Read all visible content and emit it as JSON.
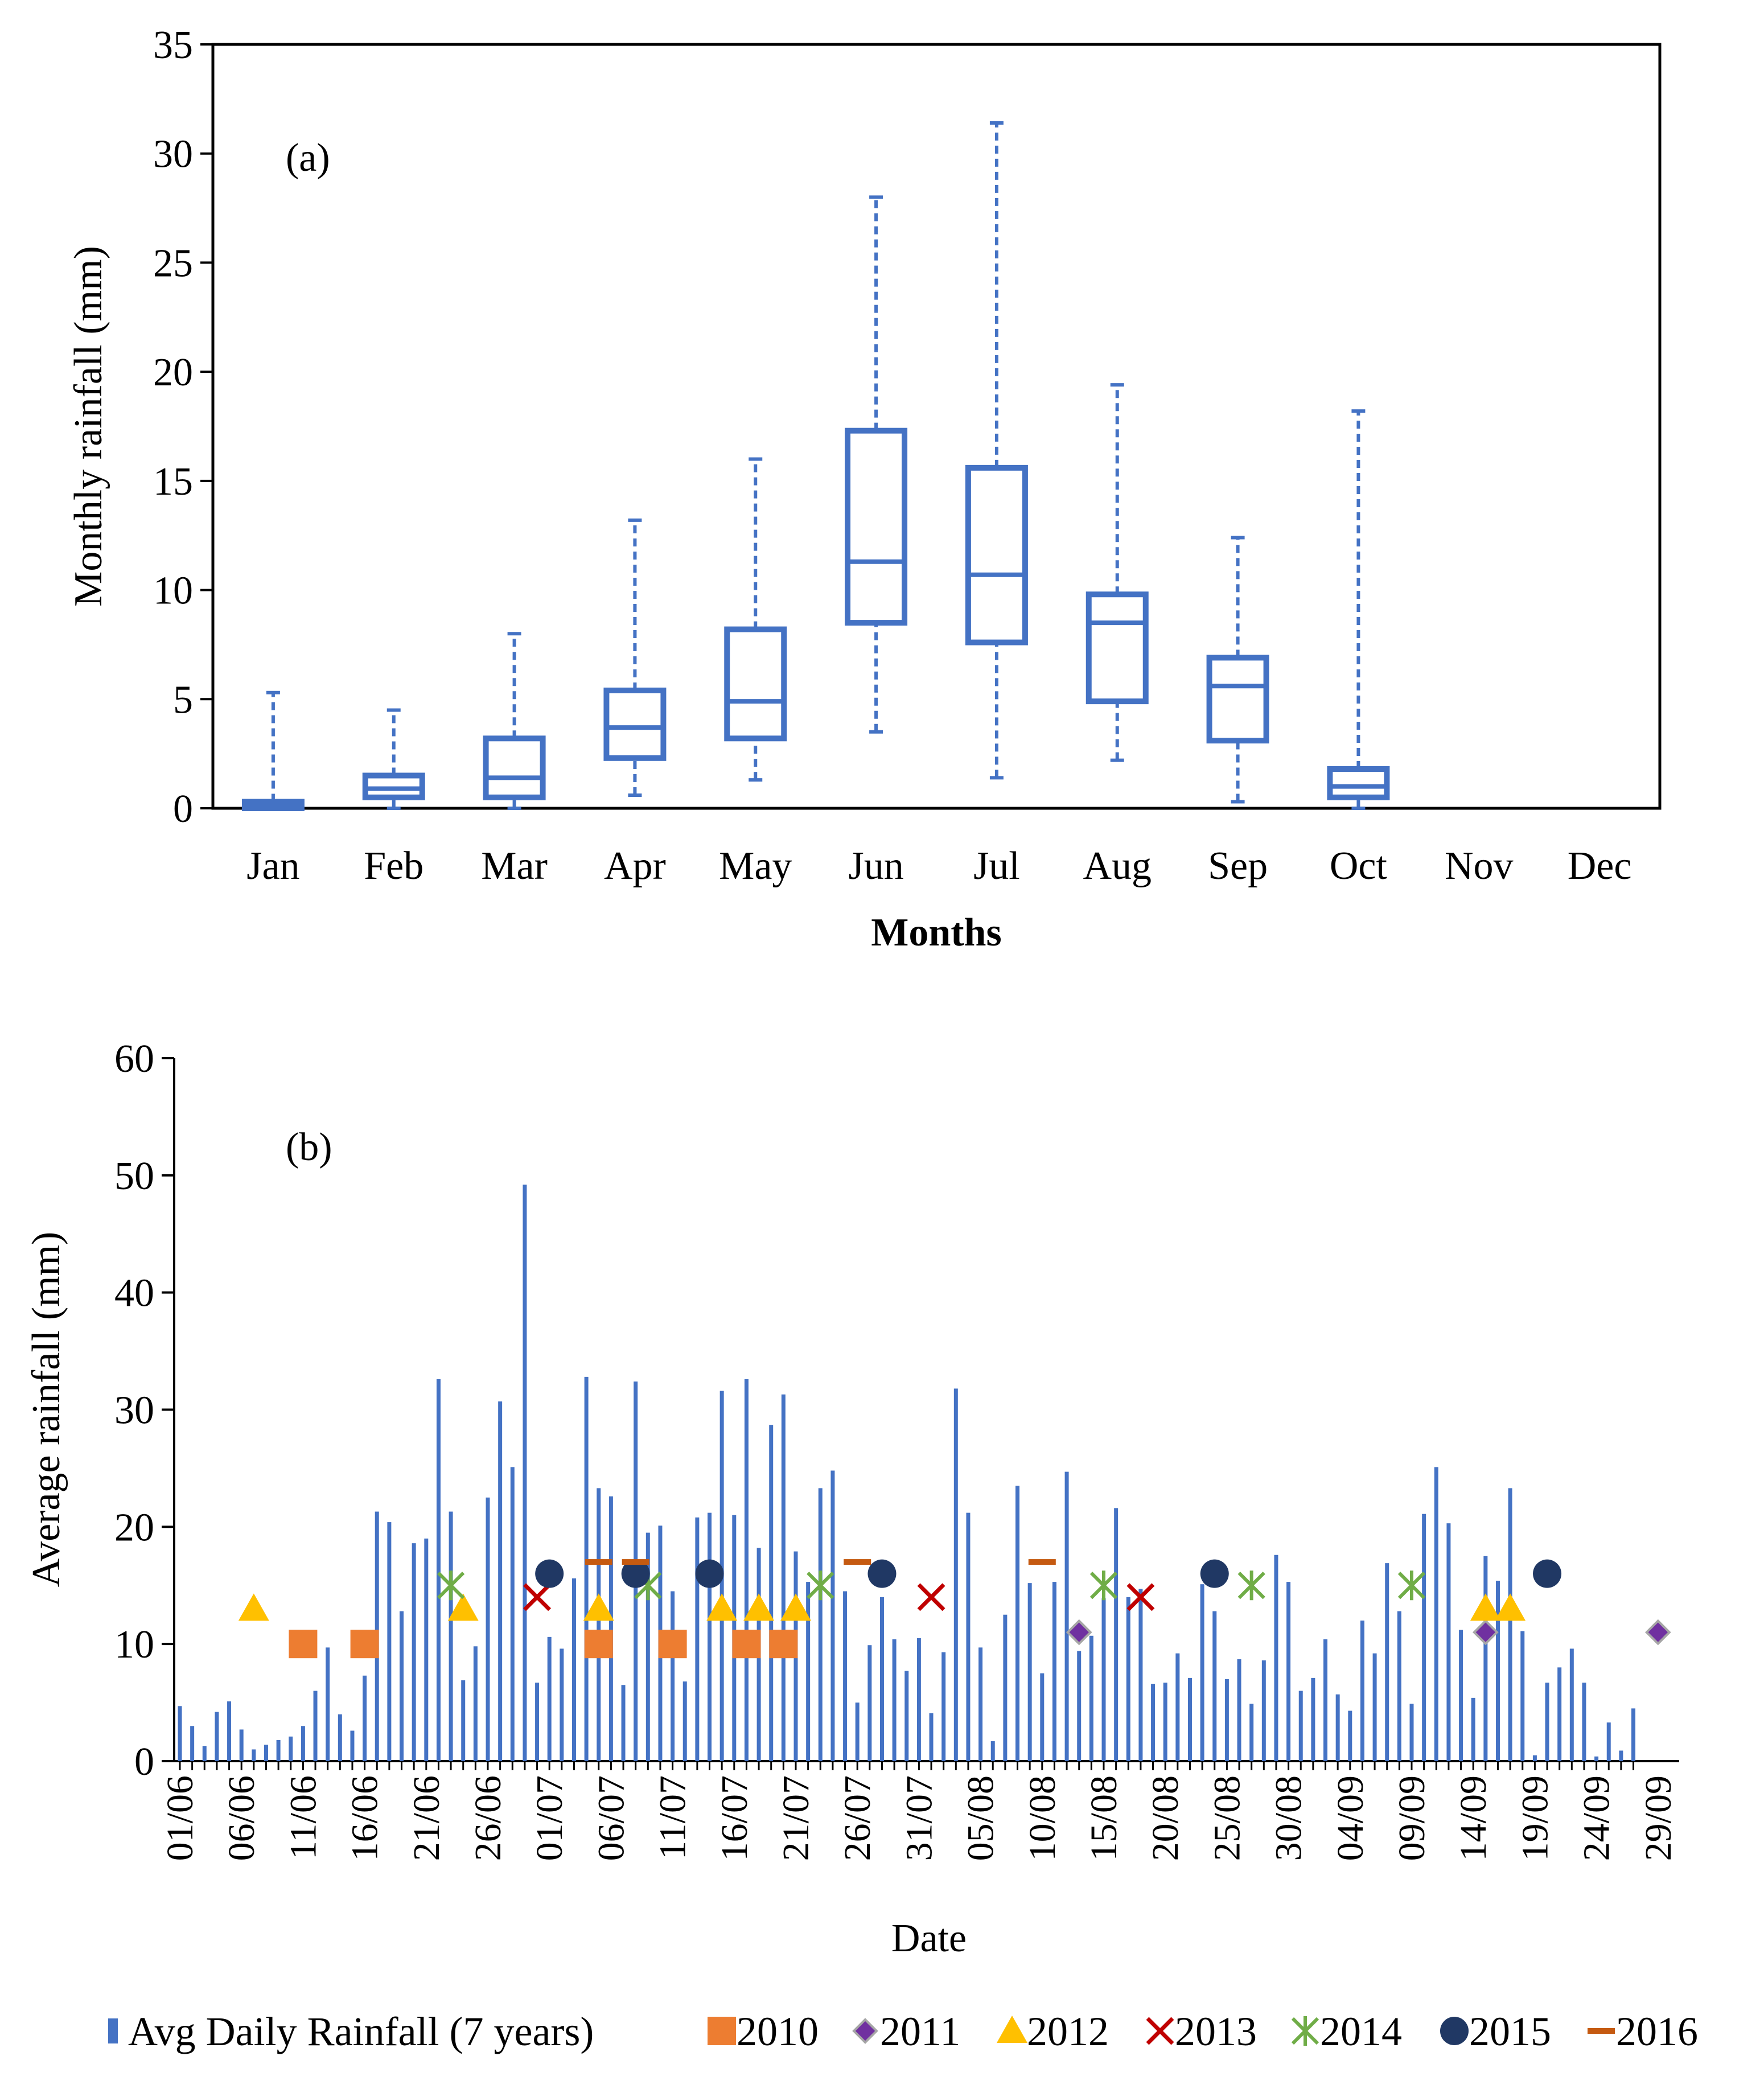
{
  "chart_data": [
    {
      "type": "boxplot",
      "panel_label": "(a)",
      "title": "",
      "xlabel": "Months",
      "ylabel": "Monthly rainfall (mm)",
      "ylim": [
        0,
        35
      ],
      "yticks": [
        "0",
        "5",
        "10",
        "15",
        "20",
        "25",
        "30",
        "35"
      ],
      "categories": [
        "Jan",
        "Feb",
        "Mar",
        "Apr",
        "May",
        "Jun",
        "Jul",
        "Aug",
        "Sep",
        "Oct",
        "Nov",
        "Dec"
      ],
      "boxes": [
        {
          "min": 0,
          "q1": 0.0,
          "median": 0.1,
          "q3": 0.3,
          "max": 5.3
        },
        {
          "min": 0,
          "q1": 0.5,
          "median": 0.9,
          "q3": 1.5,
          "max": 4.5
        },
        {
          "min": 0,
          "q1": 0.5,
          "median": 1.4,
          "q3": 3.2,
          "max": 8.0
        },
        {
          "min": 0.6,
          "q1": 2.3,
          "median": 3.7,
          "q3": 5.4,
          "max": 13.2
        },
        {
          "min": 1.3,
          "q1": 3.2,
          "median": 4.9,
          "q3": 8.2,
          "max": 16.0
        },
        {
          "min": 3.5,
          "q1": 8.5,
          "median": 11.3,
          "q3": 17.3,
          "max": 28.0
        },
        {
          "min": 1.4,
          "q1": 7.6,
          "median": 10.7,
          "q3": 15.6,
          "max": 31.4
        },
        {
          "min": 2.2,
          "q1": 4.9,
          "median": 8.5,
          "q3": 9.8,
          "max": 19.4
        },
        {
          "min": 0.3,
          "q1": 3.1,
          "median": 5.6,
          "q3": 6.9,
          "max": 12.4
        },
        {
          "min": 0,
          "q1": 0.5,
          "median": 1.0,
          "q3": 1.8,
          "max": 18.2
        },
        null,
        null
      ],
      "color": "#4472C4"
    },
    {
      "type": "bar+scatter",
      "panel_label": "(b)",
      "title": "",
      "xlabel": "Date",
      "ylabel": "Average rainfall (mm)",
      "ylim": [
        0,
        60
      ],
      "yticks": [
        "0",
        "10",
        "20",
        "30",
        "40",
        "50",
        "60"
      ],
      "date_ticks": [
        "01/06",
        "06/06",
        "11/06",
        "16/06",
        "21/06",
        "26/06",
        "01/07",
        "06/07",
        "11/07",
        "16/07",
        "21/07",
        "26/07",
        "31/07",
        "05/08",
        "10/08",
        "15/08",
        "20/08",
        "25/08",
        "30/08",
        "04/09",
        "09/09",
        "14/09",
        "19/09",
        "24/09",
        "29/09"
      ],
      "bar_series_name": "Avg Daily  Rainfall (7 years)",
      "bar_color": "#4472C4",
      "daily_values": [
        4.7,
        3.0,
        1.3,
        4.2,
        5.1,
        2.7,
        1.0,
        1.4,
        1.8,
        2.1,
        3.0,
        6.0,
        9.7,
        4.0,
        2.6,
        7.3,
        21.3,
        20.4,
        12.8,
        18.6,
        19.0,
        32.6,
        21.3,
        6.9,
        9.8,
        22.5,
        30.7,
        25.1,
        49.2,
        6.7,
        10.6,
        9.6,
        15.6,
        32.8,
        23.3,
        22.6,
        6.5,
        32.4,
        19.5,
        20.1,
        14.5,
        6.8,
        20.8,
        21.2,
        31.6,
        21.0,
        32.6,
        18.2,
        28.7,
        31.3,
        17.9,
        15.3,
        23.3,
        24.8,
        14.5,
        5.0,
        9.9,
        14.0,
        10.4,
        7.7,
        10.5,
        4.1,
        9.3,
        31.8,
        21.2,
        9.7,
        1.7,
        12.5,
        23.5,
        15.2,
        7.5,
        15.3,
        24.7,
        9.4,
        10.7,
        13.9,
        21.6,
        14.0,
        14.7,
        6.6,
        6.7,
        9.2,
        7.1,
        15.1,
        12.8,
        7.0,
        8.7,
        4.9,
        8.6,
        17.6,
        15.3,
        6.0,
        7.1,
        10.4,
        5.7,
        4.3,
        12.0,
        9.2,
        16.9,
        12.8,
        4.9,
        21.1,
        25.1,
        20.3,
        11.2,
        5.4,
        17.5,
        15.4,
        23.3,
        11.1,
        0.5,
        6.7,
        8.0,
        9.6,
        6.7,
        0.4,
        3.3,
        0.9,
        4.5
      ],
      "series": [
        {
          "name": "2010",
          "color": "#ED7D31",
          "marker": "square",
          "y": 10,
          "days": [
            11,
            16,
            35,
            41,
            47,
            50
          ]
        },
        {
          "name": "2011",
          "color": "#7030A0",
          "marker": "diamond",
          "y": 11,
          "days": [
            74,
            107,
            121
          ]
        },
        {
          "name": "2012",
          "color": "#FFC000",
          "marker": "triangle",
          "y": 13,
          "days": [
            7,
            24,
            35,
            45,
            48,
            51,
            107,
            109
          ]
        },
        {
          "name": "2013",
          "color": "#C00000",
          "marker": "x",
          "y": 14,
          "days": [
            30,
            62,
            79
          ]
        },
        {
          "name": "2014",
          "color": "#70AD47",
          "marker": "asterisk",
          "y": 15,
          "days": [
            23,
            39,
            53,
            76,
            88,
            101
          ]
        },
        {
          "name": "2015",
          "color": "#203864",
          "marker": "circle",
          "y": 16,
          "days": [
            31,
            38,
            44,
            58,
            85,
            112
          ]
        },
        {
          "name": "2016",
          "color": "#C55A11",
          "marker": "dash",
          "y": 17,
          "days": [
            35,
            38,
            56,
            71
          ]
        }
      ]
    }
  ]
}
